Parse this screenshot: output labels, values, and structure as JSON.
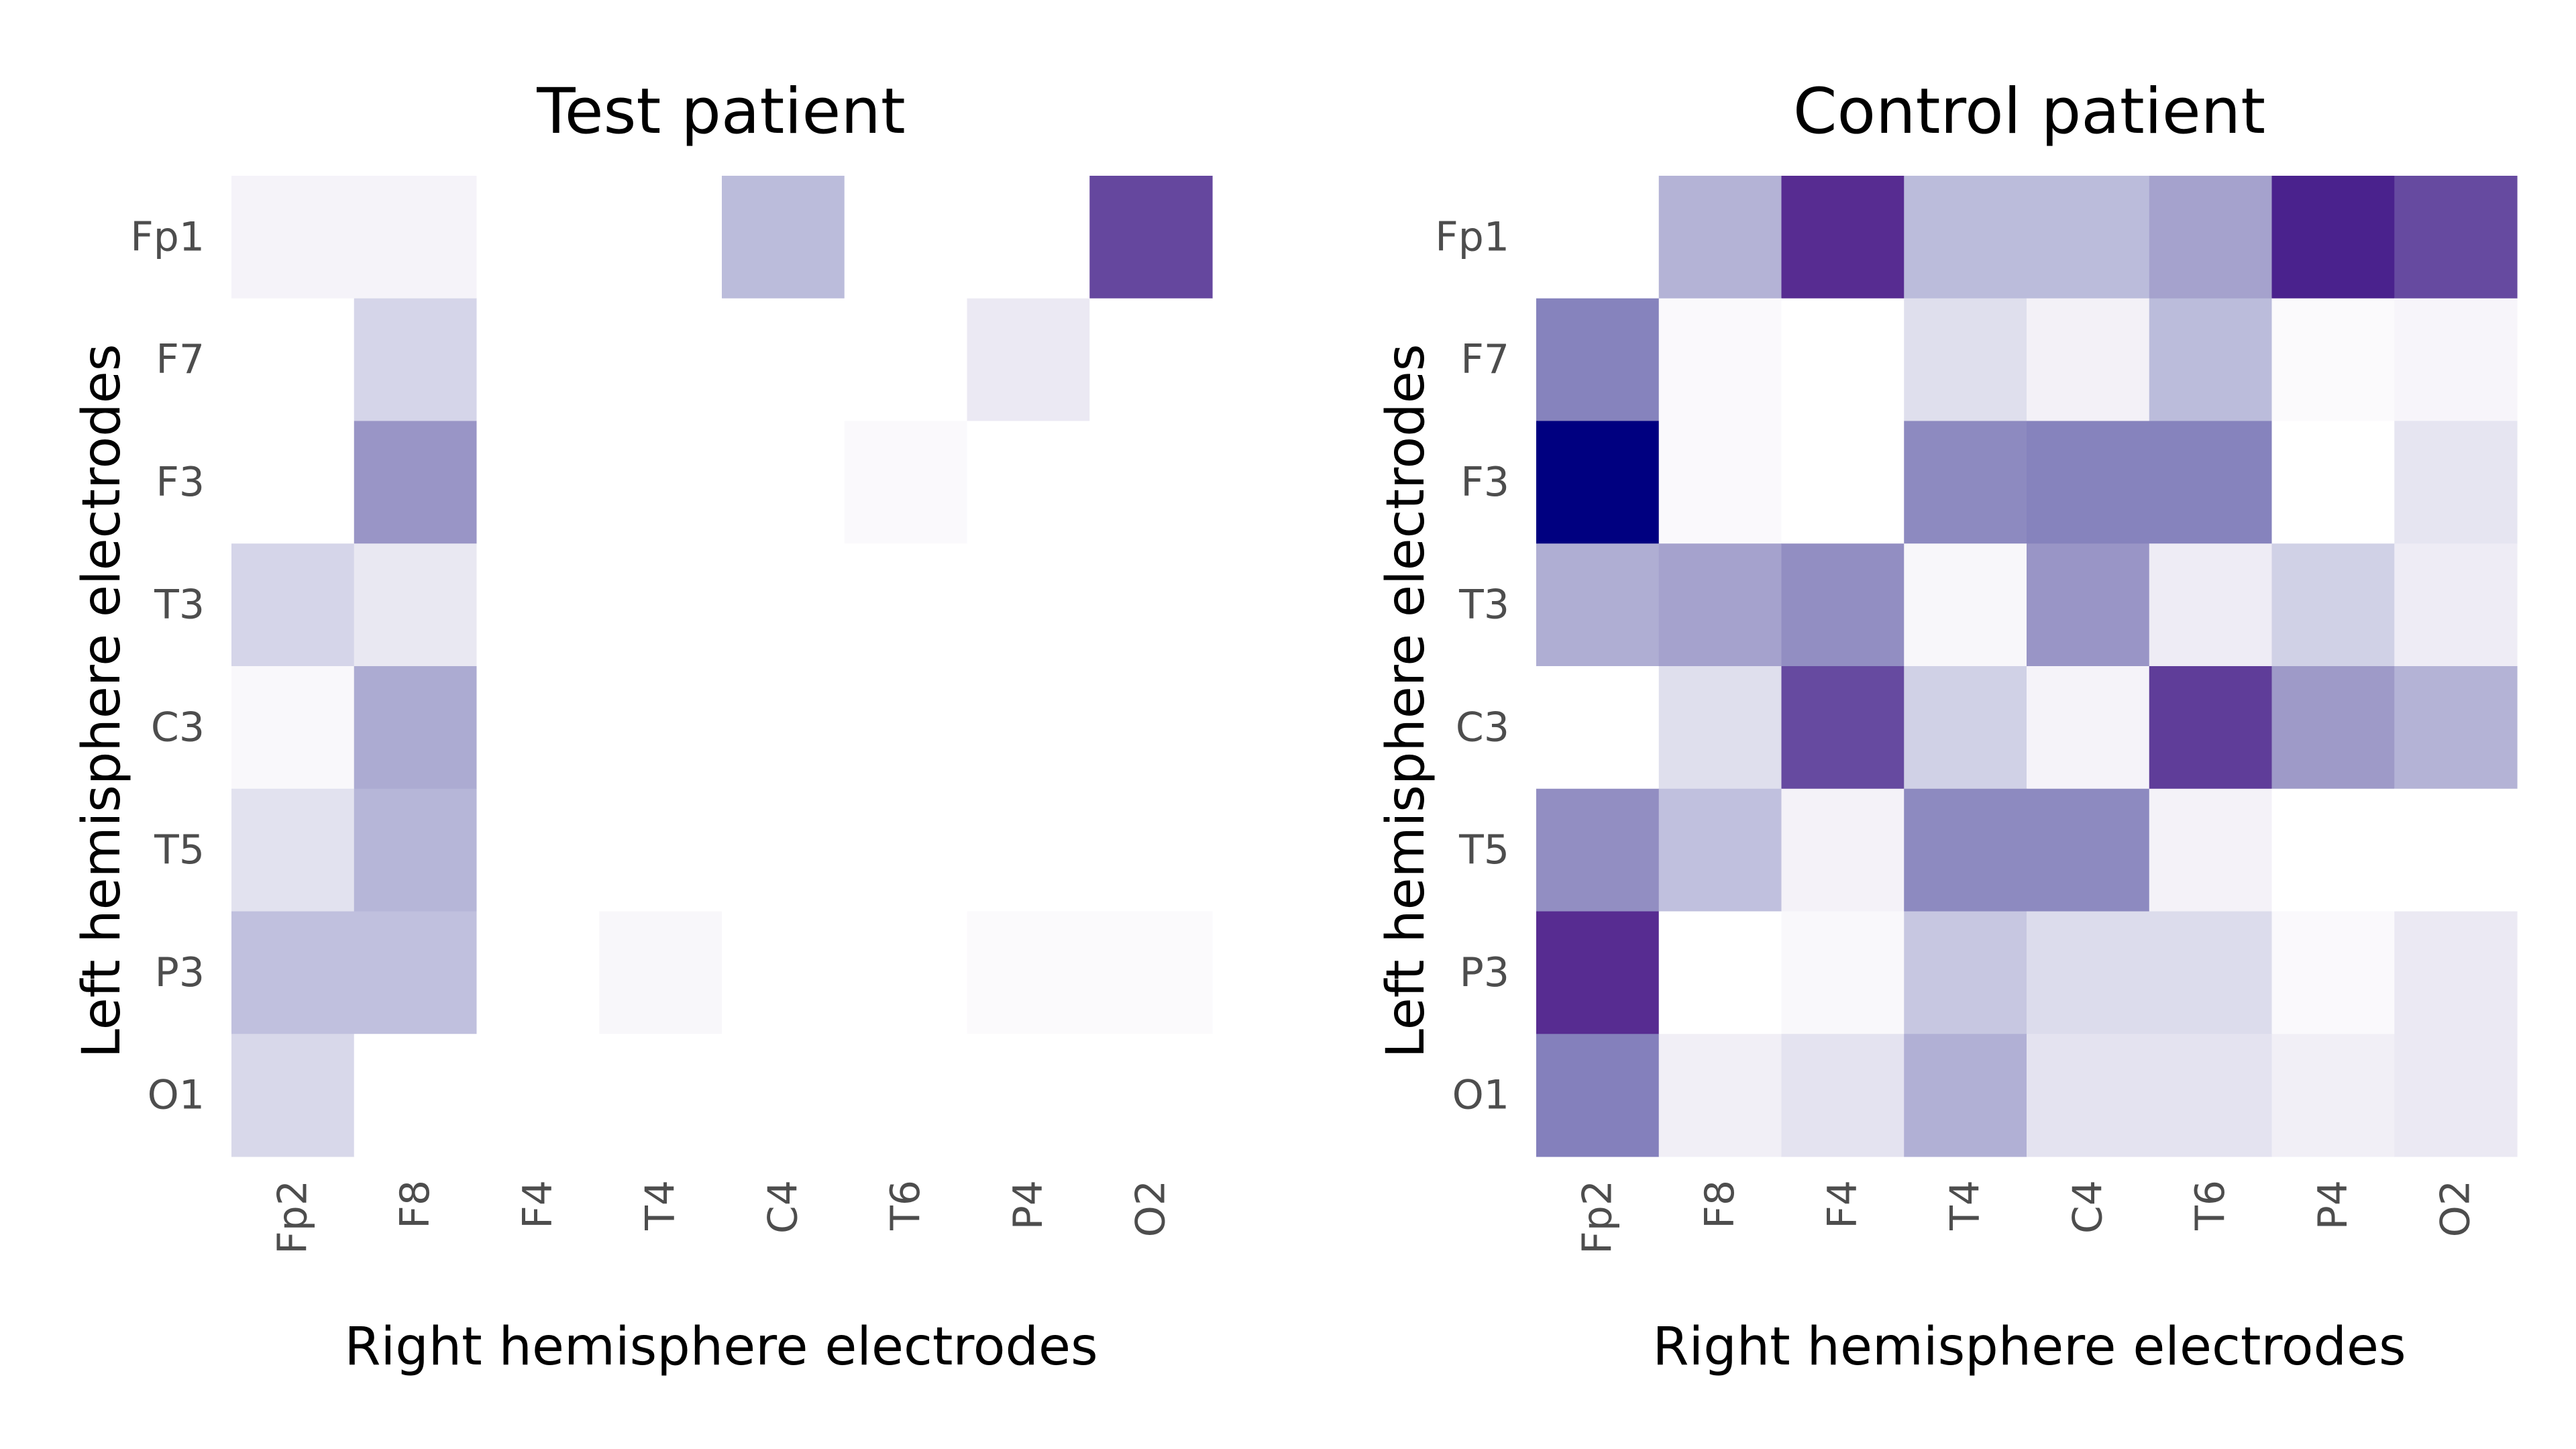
{
  "chart_data": [
    {
      "type": "heatmap",
      "title": "Test patient",
      "xlabel": "Right hemisphere electrodes",
      "ylabel": "Left hemisphere electrodes",
      "x_categories": [
        "Fp2",
        "F8",
        "F4",
        "T4",
        "C4",
        "T6",
        "P4",
        "O2"
      ],
      "y_categories": [
        "Fp1",
        "F7",
        "F3",
        "T3",
        "C3",
        "T5",
        "P3",
        "O1"
      ],
      "colormap": "Purples",
      "color_range": [
        0,
        1
      ],
      "values": [
        [
          0.07,
          0.07,
          0.0,
          0.0,
          0.38,
          0.0,
          0.0,
          0.78
        ],
        [
          0.0,
          0.27,
          0.0,
          0.0,
          0.0,
          0.0,
          0.15,
          0.0
        ],
        [
          0.0,
          0.52,
          0.0,
          0.0,
          0.0,
          0.02,
          0.0,
          0.0
        ],
        [
          0.27,
          0.16,
          0.0,
          0.0,
          0.0,
          0.0,
          0.0,
          0.0
        ],
        [
          0.03,
          0.44,
          0.0,
          0.0,
          0.0,
          0.0,
          0.0,
          0.0
        ],
        [
          0.2,
          0.4,
          0.0,
          0.0,
          0.0,
          0.0,
          0.0,
          0.0
        ],
        [
          0.36,
          0.36,
          0.0,
          0.04,
          0.0,
          0.0,
          0.01,
          0.01
        ],
        [
          0.26,
          0.0,
          0.0,
          0.0,
          0.0,
          0.0,
          0.0,
          0.0
        ]
      ],
      "grid": false
    },
    {
      "type": "heatmap",
      "title": "Control patient",
      "xlabel": "Right hemisphere electrodes",
      "ylabel": "Left hemisphere electrodes",
      "x_categories": [
        "Fp2",
        "F8",
        "F4",
        "T4",
        "C4",
        "T6",
        "P4",
        "O2"
      ],
      "y_categories": [
        "Fp1",
        "F7",
        "F3",
        "T3",
        "C3",
        "T5",
        "P3",
        "O1"
      ],
      "colormap": "Purples",
      "color_range": [
        0,
        1
      ],
      "values": [
        [
          0.0,
          0.41,
          0.86,
          0.38,
          0.38,
          0.47,
          0.89,
          0.77
        ],
        [
          0.6,
          0.02,
          0.0,
          0.22,
          0.09,
          0.38,
          0.01,
          0.05
        ],
        [
          1.0,
          0.02,
          0.0,
          0.57,
          0.6,
          0.6,
          0.0,
          0.18
        ],
        [
          0.43,
          0.47,
          0.55,
          0.04,
          0.52,
          0.13,
          0.29,
          0.13
        ],
        [
          0.0,
          0.22,
          0.77,
          0.29,
          0.07,
          0.81,
          0.5,
          0.41
        ],
        [
          0.55,
          0.36,
          0.08,
          0.57,
          0.57,
          0.08,
          0.0,
          0.0
        ],
        [
          0.86,
          0.0,
          0.03,
          0.33,
          0.24,
          0.24,
          0.02,
          0.15
        ],
        [
          0.61,
          0.11,
          0.19,
          0.42,
          0.19,
          0.19,
          0.11,
          0.15
        ]
      ],
      "grid": false
    }
  ]
}
